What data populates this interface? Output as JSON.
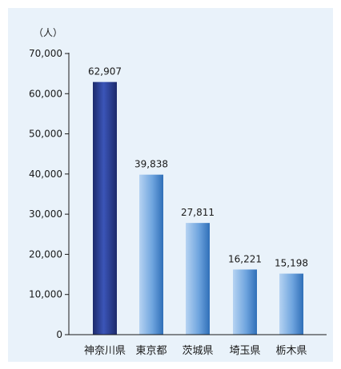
{
  "chart_data": {
    "type": "bar",
    "unit_label": "（人）",
    "categories": [
      "神奈川県",
      "東京都",
      "茨城県",
      "埼玉県",
      "栃木県"
    ],
    "values": [
      62907,
      39838,
      27811,
      16221,
      15198
    ],
    "value_labels": [
      "62,907",
      "39,838",
      "27,811",
      "16,221",
      "15,198"
    ],
    "ylim": [
      0,
      70000
    ],
    "yticks": [
      0,
      10000,
      20000,
      30000,
      40000,
      50000,
      60000,
      70000
    ],
    "ytick_labels": [
      "0",
      "10,000",
      "20,000",
      "30,000",
      "40,000",
      "50,000",
      "60,000",
      "70,000"
    ],
    "grid": false,
    "colors": {
      "highlight_bar_dark": "#1c2a6b",
      "highlight_bar_mid": "#3b55b8",
      "bar_light": "#b6d3f2",
      "bar_mid": "#6ea4de",
      "bar_edge": "#2f6fb8",
      "background": "#e9f2fa"
    }
  }
}
